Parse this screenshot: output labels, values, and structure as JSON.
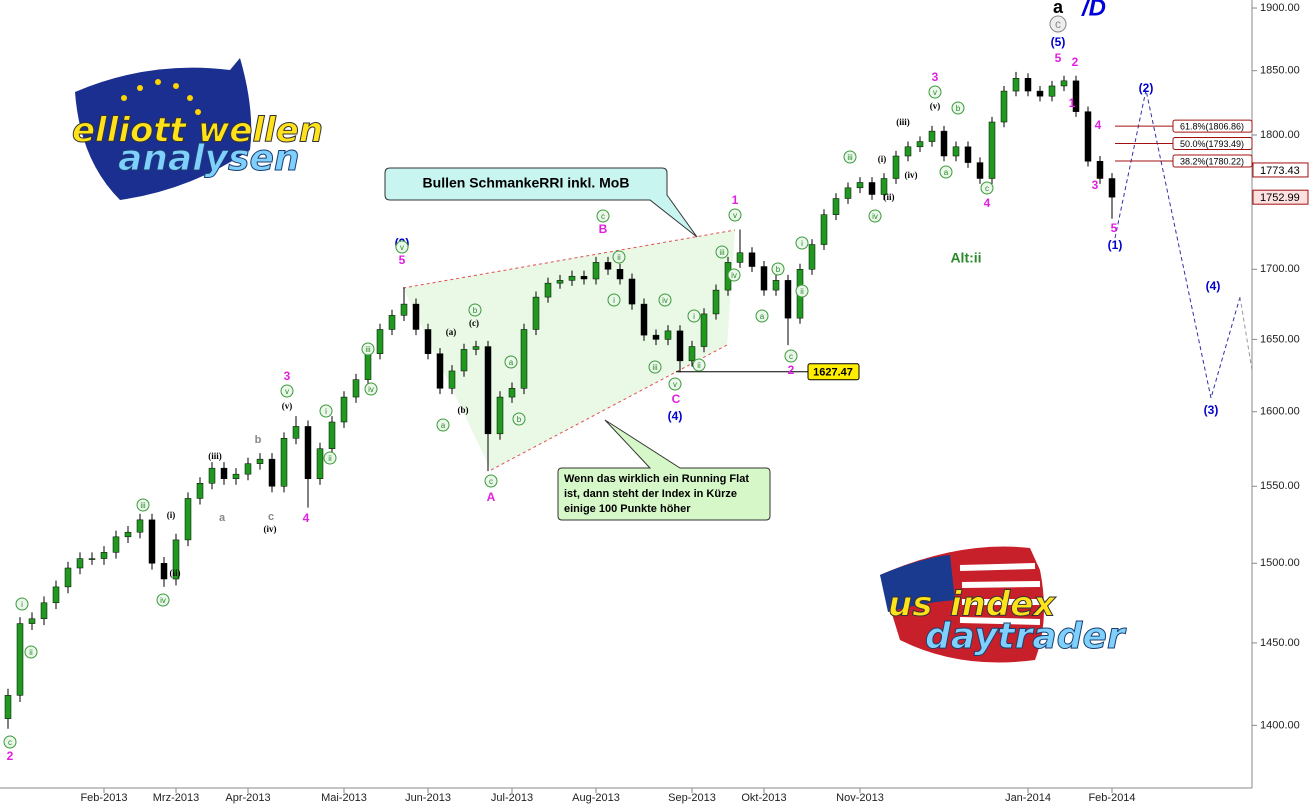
{
  "chart_data": {
    "type": "candlestick",
    "categories": [
      null,
      null,
      null,
      null,
      null,
      null,
      null,
      null,
      "Feb-2013",
      null,
      null,
      null,
      null,
      null,
      "Mrz-2013",
      null,
      null,
      null,
      null,
      null,
      "Apr-2013",
      null,
      null,
      null,
      null,
      null,
      null,
      null,
      "Mai-2013",
      null,
      null,
      null,
      null,
      null,
      null,
      "Jun-2013",
      null,
      null,
      null,
      null,
      null,
      null,
      "Jul-2013",
      null,
      null,
      null,
      null,
      null,
      null,
      "Aug-2013",
      null,
      null,
      null,
      null,
      null,
      null,
      null,
      "Sep-2013",
      null,
      null,
      null,
      null,
      null,
      "Okt-2013",
      null,
      null,
      null,
      null,
      null,
      null,
      null,
      "Nov-2013",
      null,
      null,
      null,
      null,
      null,
      null,
      null,
      null,
      null,
      null,
      null,
      null,
      null,
      "Jan-2014",
      null,
      null,
      null,
      null,
      null,
      null,
      "Feb-2014"
    ],
    "open": [
      1404,
      1418,
      1462,
      1465,
      1475,
      1485,
      1497,
      1503,
      1503,
      1507,
      1517,
      1520,
      1528,
      1500,
      1490,
      1515,
      1542,
      1552,
      1562,
      1555,
      1558,
      1565,
      1568,
      1550,
      1582,
      1590,
      1555,
      1575,
      1593,
      1610,
      1622,
      1640,
      1657,
      1667,
      1675,
      1657,
      1640,
      1616,
      1628,
      1643,
      1645,
      1585,
      1610,
      1616,
      1657,
      1680,
      1690,
      1692,
      1695,
      1693,
      1705,
      1700,
      1693,
      1675,
      1653,
      1650,
      1656,
      1635,
      1645,
      1668,
      1685,
      1705,
      1712,
      1702,
      1685,
      1692,
      1665,
      1700,
      1718,
      1740,
      1752,
      1760,
      1764,
      1755,
      1767,
      1784,
      1791,
      1795,
      1803,
      1784,
      1791,
      1779,
      1767,
      1810,
      1834,
      1844,
      1834,
      1830,
      1838,
      1842,
      1818,
      1780,
      1767
    ],
    "high": [
      1422,
      1466,
      1469,
      1479,
      1489,
      1501,
      1507,
      1507,
      1511,
      1521,
      1524,
      1532,
      1532,
      1504,
      1519,
      1546,
      1556,
      1566,
      1566,
      1562,
      1569,
      1572,
      1572,
      1586,
      1597,
      1594,
      1579,
      1597,
      1614,
      1626,
      1644,
      1661,
      1671,
      1687,
      1679,
      1661,
      1644,
      1632,
      1647,
      1649,
      1649,
      1614,
      1620,
      1661,
      1684,
      1694,
      1696,
      1699,
      1699,
      1709,
      1709,
      1704,
      1697,
      1679,
      1657,
      1660,
      1660,
      1649,
      1672,
      1689,
      1709,
      1729,
      1716,
      1706,
      1696,
      1696,
      1704,
      1722,
      1744,
      1756,
      1764,
      1768,
      1768,
      1771,
      1788,
      1795,
      1799,
      1807,
      1807,
      1795,
      1795,
      1783,
      1814,
      1838,
      1849,
      1848,
      1838,
      1842,
      1846,
      1846,
      1822,
      1784,
      1771
    ],
    "low": [
      1398,
      1414,
      1458,
      1461,
      1471,
      1481,
      1493,
      1499,
      1499,
      1503,
      1513,
      1516,
      1496,
      1485,
      1486,
      1511,
      1538,
      1548,
      1551,
      1551,
      1554,
      1561,
      1546,
      1546,
      1578,
      1536,
      1551,
      1571,
      1589,
      1606,
      1618,
      1636,
      1653,
      1663,
      1653,
      1636,
      1612,
      1612,
      1624,
      1639,
      1560,
      1581,
      1606,
      1612,
      1653,
      1676,
      1686,
      1688,
      1689,
      1689,
      1696,
      1689,
      1671,
      1649,
      1646,
      1646,
      1627,
      1631,
      1641,
      1664,
      1681,
      1701,
      1698,
      1681,
      1681,
      1646,
      1661,
      1696,
      1714,
      1736,
      1748,
      1756,
      1751,
      1751,
      1763,
      1780,
      1787,
      1791,
      1780,
      1780,
      1775,
      1763,
      1763,
      1806,
      1830,
      1830,
      1826,
      1826,
      1834,
      1814,
      1776,
      1763,
      1737
    ],
    "close": [
      1418,
      1462,
      1465,
      1475,
      1485,
      1497,
      1503,
      1503,
      1507,
      1517,
      1520,
      1528,
      1500,
      1490,
      1515,
      1542,
      1552,
      1562,
      1555,
      1558,
      1565,
      1568,
      1550,
      1582,
      1590,
      1555,
      1575,
      1593,
      1610,
      1622,
      1640,
      1657,
      1667,
      1675,
      1657,
      1640,
      1616,
      1628,
      1643,
      1645,
      1585,
      1610,
      1616,
      1657,
      1680,
      1690,
      1692,
      1695,
      1693,
      1705,
      1700,
      1693,
      1675,
      1653,
      1650,
      1656,
      1635,
      1645,
      1668,
      1685,
      1705,
      1712,
      1702,
      1685,
      1692,
      1665,
      1700,
      1718,
      1740,
      1752,
      1760,
      1764,
      1755,
      1767,
      1784,
      1791,
      1795,
      1803,
      1784,
      1791,
      1779,
      1767,
      1810,
      1834,
      1844,
      1834,
      1830,
      1838,
      1842,
      1818,
      1780,
      1767,
      1753
    ],
    "up_color": "#1f9a1f",
    "down_color": "#000000",
    "log_scale": true,
    "ylim": [
      1362,
      1906.5
    ],
    "yticks": [
      {
        "value": 1400,
        "label": "1400.00"
      },
      {
        "value": 1450,
        "label": "1450.00"
      },
      {
        "value": 1500,
        "label": "1500.00"
      },
      {
        "value": 1550,
        "label": "1550.00"
      },
      {
        "value": 1600,
        "label": "1600.00"
      },
      {
        "value": 1650,
        "label": "1650.00"
      },
      {
        "value": 1700,
        "label": "1700.00"
      },
      {
        "value": 1750,
        "label": "1750.00"
      },
      {
        "value": 1800,
        "label": "1800.00"
      },
      {
        "value": 1850,
        "label": "1850.00"
      },
      {
        "value": 1900,
        "label": "1900.00"
      }
    ],
    "price_tags": [
      1773.43,
      1752.99
    ],
    "support_level": 1627.47,
    "fib_levels": [
      {
        "value": 1806.86,
        "label": "61.8%(1806.86)"
      },
      {
        "value": 1793.49,
        "label": "50.0%(1793.49)"
      },
      {
        "value": 1780.22,
        "label": "38.2%(1780.22)"
      }
    ],
    "alt_label": "Alt:ii",
    "callouts": [
      {
        "lines": [
          "Bullen SchmankeRRI inkl. MoB"
        ]
      },
      {
        "lines": [
          "Wenn das wirklich ein Running Flat",
          "ist, dann steht der Index in Kürze",
          "einige 100 Punkte höher"
        ]
      }
    ],
    "annotations": [
      {
        "text": "2",
        "style": "magenta"
      },
      {
        "text": "4",
        "style": "magenta"
      },
      {
        "text": "3",
        "style": "magenta"
      },
      {
        "text": "5",
        "style": "magenta"
      },
      {
        "text": "B",
        "style": "magenta"
      },
      {
        "text": "A",
        "style": "magenta"
      },
      {
        "text": "C",
        "style": "magenta"
      },
      {
        "text": "1",
        "style": "magenta"
      },
      {
        "text": "2",
        "style": "magenta"
      },
      {
        "text": "3",
        "style": "magenta"
      },
      {
        "text": "4",
        "style": "magenta"
      },
      {
        "text": "5",
        "style": "magenta"
      },
      {
        "text": "2",
        "style": "magenta"
      },
      {
        "text": "1",
        "style": "magenta"
      },
      {
        "text": "4",
        "style": "magenta"
      },
      {
        "text": "3",
        "style": "magenta"
      },
      {
        "text": "5",
        "style": "magenta"
      },
      {
        "text": "(3)",
        "style": "blue"
      },
      {
        "text": "(4)",
        "style": "blue"
      },
      {
        "text": "(5)",
        "style": "blue"
      },
      {
        "text": "(1)",
        "style": "blue"
      },
      {
        "text": "(2)",
        "style": "blue"
      },
      {
        "text": "(3)",
        "style": "blue"
      },
      {
        "text": "(4)",
        "style": "blue"
      },
      {
        "text": "(iii)",
        "style": "black"
      },
      {
        "text": "(i)",
        "style": "black"
      },
      {
        "text": "(ii)",
        "style": "black"
      },
      {
        "text": "(iv)",
        "style": "black"
      },
      {
        "text": "(v)",
        "style": "black"
      },
      {
        "text": "(a)",
        "style": "black"
      },
      {
        "text": "(b)",
        "style": "black"
      },
      {
        "text": "(c)",
        "style": "black"
      },
      {
        "text": "(iii)",
        "style": "black"
      },
      {
        "text": "(i)",
        "style": "black"
      },
      {
        "text": "(ii)",
        "style": "black"
      },
      {
        "text": "(iv)",
        "style": "black"
      },
      {
        "text": "(v)",
        "style": "black"
      },
      {
        "text": "b",
        "style": "gray"
      },
      {
        "text": "a",
        "style": "gray"
      },
      {
        "text": "c",
        "style": "gray"
      },
      {
        "text": "c",
        "style": "circle"
      },
      {
        "text": "ii",
        "style": "circle"
      },
      {
        "text": "i",
        "style": "circle"
      },
      {
        "text": "iii",
        "style": "circle"
      },
      {
        "text": "iv",
        "style": "circle"
      },
      {
        "text": "v",
        "style": "circle"
      },
      {
        "text": "i",
        "style": "circle"
      },
      {
        "text": "ii",
        "style": "circle"
      },
      {
        "text": "iii",
        "style": "circle"
      },
      {
        "text": "iv",
        "style": "circle"
      },
      {
        "text": "v",
        "style": "circle"
      },
      {
        "text": "a",
        "style": "circle"
      },
      {
        "text": "b",
        "style": "circle"
      },
      {
        "text": "a",
        "style": "circle"
      },
      {
        "text": "b",
        "style": "circle"
      },
      {
        "text": "c",
        "style": "circle"
      },
      {
        "text": "c",
        "style": "circle"
      },
      {
        "text": "ii",
        "style": "circle"
      },
      {
        "text": "i",
        "style": "circle"
      },
      {
        "text": "iv",
        "style": "circle"
      },
      {
        "text": "iii",
        "style": "circle"
      },
      {
        "text": "i",
        "style": "circle"
      },
      {
        "text": "ii",
        "style": "circle"
      },
      {
        "text": "v",
        "style": "circle"
      },
      {
        "text": "iii",
        "style": "circle"
      },
      {
        "text": "iv",
        "style": "circle"
      },
      {
        "text": "v",
        "style": "circle"
      },
      {
        "text": "a",
        "style": "circle"
      },
      {
        "text": "b",
        "style": "circle"
      },
      {
        "text": "c",
        "style": "circle"
      },
      {
        "text": "ii",
        "style": "circle"
      },
      {
        "text": "i",
        "style": "circle"
      },
      {
        "text": "iii",
        "style": "circle"
      },
      {
        "text": "iv",
        "style": "circle"
      },
      {
        "text": "a",
        "style": "circle"
      },
      {
        "text": "b",
        "style": "circle"
      },
      {
        "text": "c",
        "style": "circle"
      },
      {
        "text": "v",
        "style": "circle"
      },
      {
        "text": "c",
        "style": "big-circle"
      },
      {
        "text": "a",
        "style": "big-black"
      },
      {
        "text": "/D",
        "style": "big-blue"
      }
    ]
  },
  "logos": {
    "left": [
      "elliott",
      "wellen",
      "analysen"
    ],
    "right": [
      "us",
      "index",
      "daytrader"
    ]
  }
}
